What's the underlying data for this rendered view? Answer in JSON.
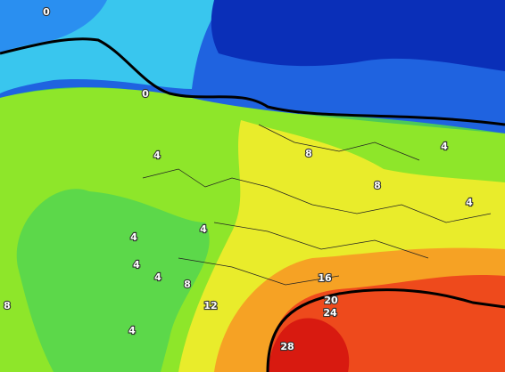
{
  "map": {
    "contour_labels": [
      "0",
      "0",
      "4",
      "8",
      "4",
      "8",
      "4",
      "4",
      "4",
      "4",
      "4",
      "8",
      "8",
      "12",
      "16",
      "20",
      "24",
      "4",
      "28"
    ]
  }
}
